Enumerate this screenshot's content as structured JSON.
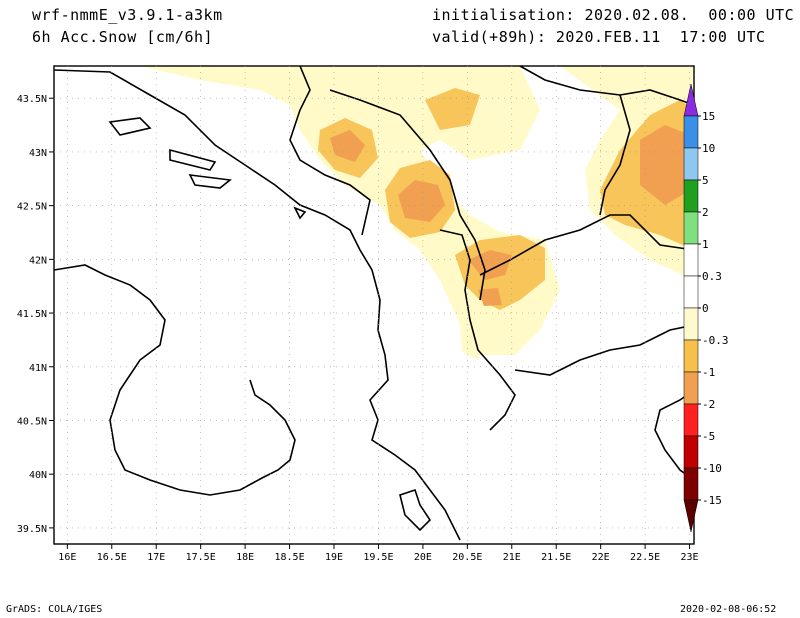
{
  "header": {
    "model": "wrf-nmmE_v3.9.1-a3km",
    "variable": "6h Acc.Snow [cm/6h]",
    "initialisation": "initialisation: 2020.02.08.  00:00 UTC",
    "valid": "valid(+89h): 2020.FEB.11  17:00 UTC"
  },
  "footer": {
    "software": "GrADS: COLA/IGES",
    "timestamp": "2020-02-08-06:52"
  },
  "axes": {
    "lon_ticks": [
      "16E",
      "16.5E",
      "17E",
      "17.5E",
      "18E",
      "18.5E",
      "19E",
      "19.5E",
      "20E",
      "20.5E",
      "21E",
      "21.5E",
      "22E",
      "22.5E",
      "23E"
    ],
    "lon_values": [
      16,
      16.5,
      17,
      17.5,
      18,
      18.5,
      19,
      19.5,
      20,
      20.5,
      21,
      21.5,
      22,
      22.5,
      23
    ],
    "lat_ticks": [
      "43.5N",
      "43N",
      "42.5N",
      "42N",
      "41.5N",
      "41N",
      "40.5N",
      "40N",
      "39.5N"
    ],
    "lat_values": [
      43.5,
      43,
      42.5,
      42,
      41.5,
      41,
      40.5,
      40,
      39.5
    ],
    "lon_range": [
      15.85,
      23.05
    ],
    "lat_range": [
      39.35,
      43.8
    ]
  },
  "colorbar": {
    "labels": [
      "15",
      "10",
      "5",
      "2",
      "1",
      "0.3",
      "0",
      "-0.3",
      "-1",
      "-2",
      "-5",
      "-10",
      "-15"
    ],
    "colors": [
      "#3030d8",
      "#3a8fe6",
      "#8ec8f0",
      "#20a020",
      "#80e080",
      "#ffffff",
      "#ffffff",
      "#fffacd",
      "#f7c04d",
      "#f0a050",
      "#ff2020",
      "#c00000",
      "#800000"
    ],
    "top_arrow_color": "#8a2be2",
    "bottom_arrow_color": "#5a0000"
  },
  "snow_colors": {
    "light": "#fffac8",
    "medium": "#f7c55a",
    "heavy": "#f0a050"
  }
}
